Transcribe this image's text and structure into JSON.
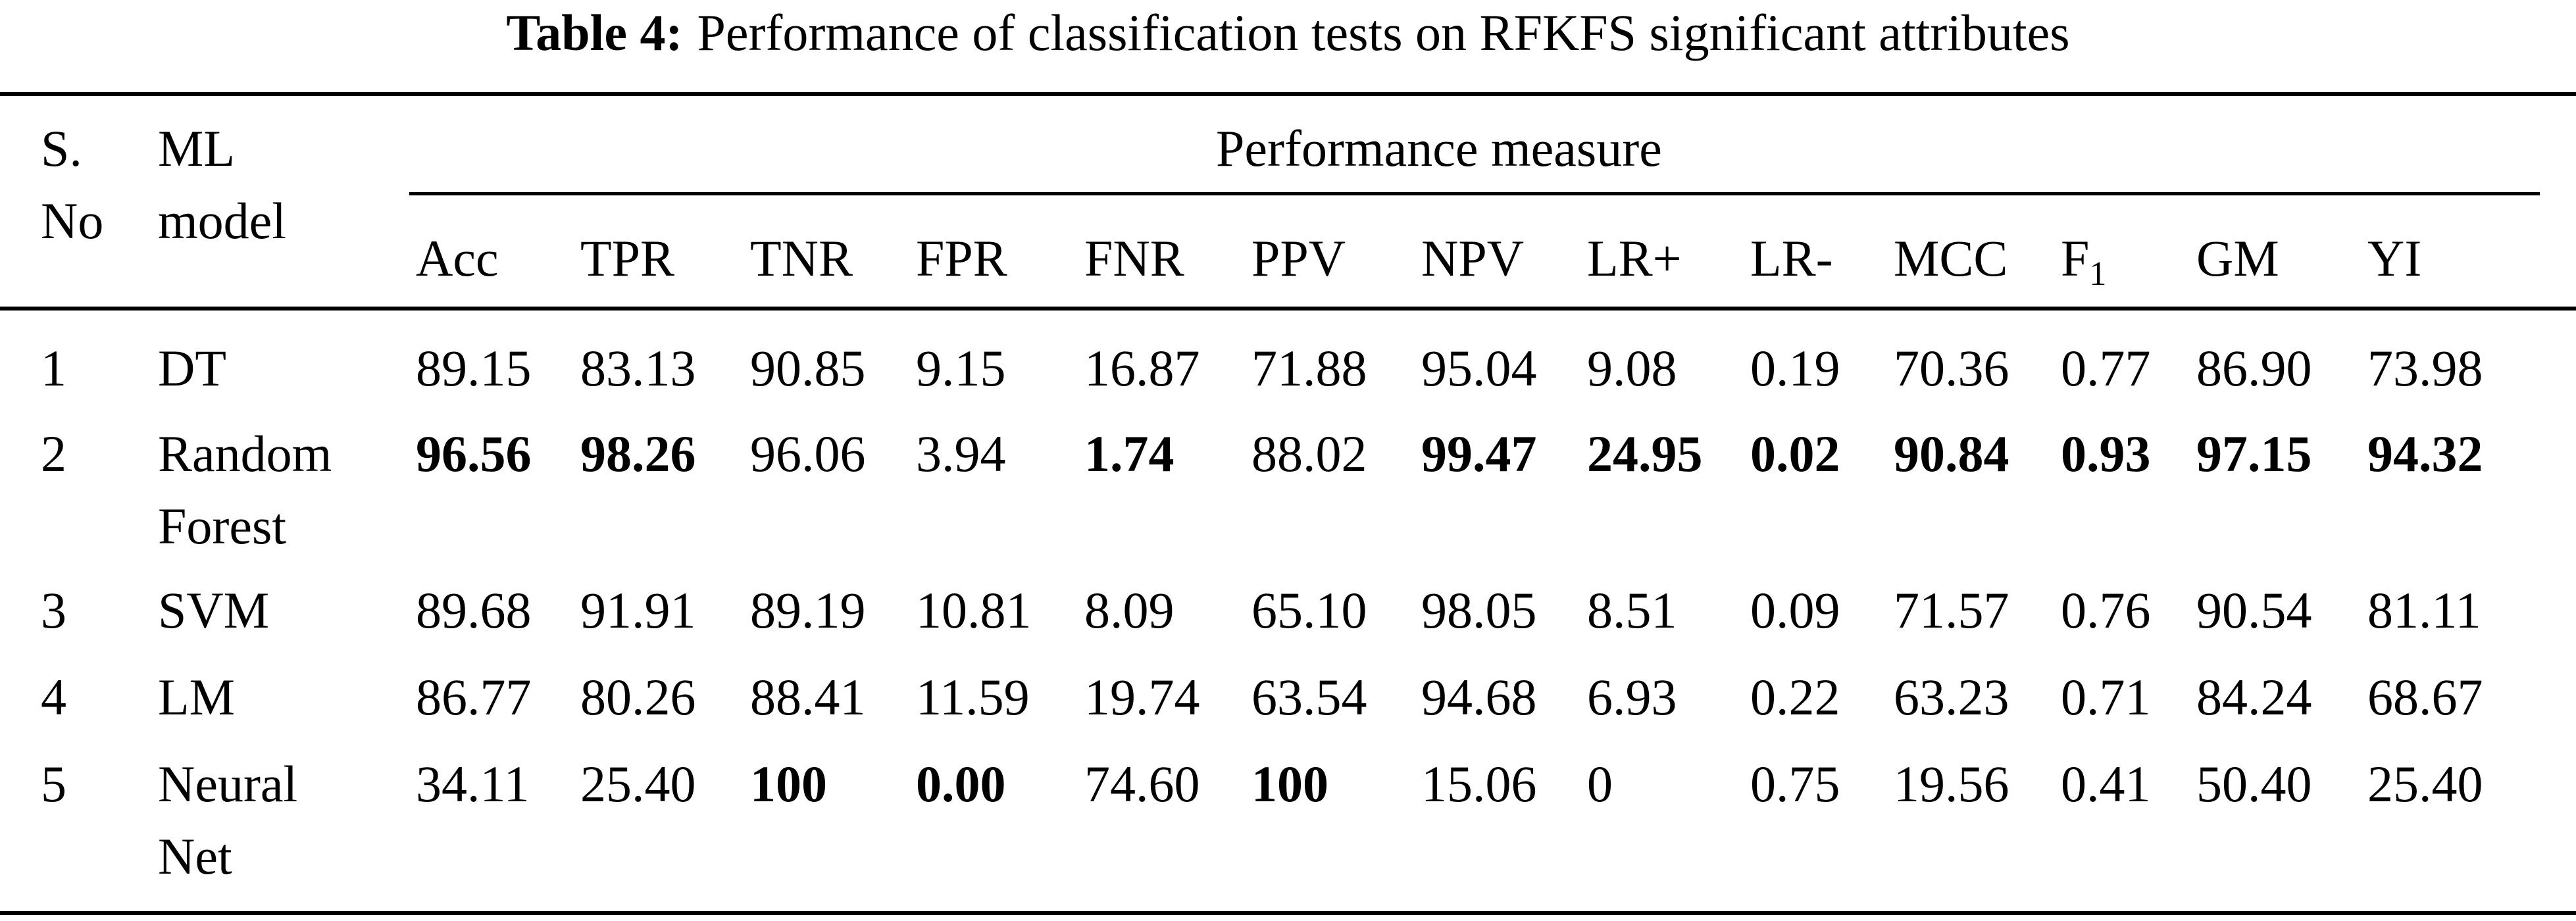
{
  "caption": {
    "label": "Table 4:",
    "text": "Performance of classification tests on RFKFS significant attributes"
  },
  "header": {
    "sno_line1": "S.",
    "sno_line2": "No",
    "model_line1": "ML",
    "model_line2": "model",
    "group": "Performance measure",
    "columns": [
      "Acc",
      "TPR",
      "TNR",
      "FPR",
      "FNR",
      "PPV",
      "NPV",
      "LR+",
      "LR-",
      "MCC",
      "F",
      "GM",
      "YI"
    ],
    "f1_subscript": "1"
  },
  "rows": [
    {
      "sno": "1",
      "model": [
        "DT"
      ],
      "values": [
        "89.15",
        "83.13",
        "90.85",
        "9.15",
        "16.87",
        "71.88",
        "95.04",
        "9.08",
        "0.19",
        "70.36",
        "0.77",
        "86.90",
        "73.98"
      ],
      "bold": []
    },
    {
      "sno": "2",
      "model": [
        "Random",
        "Forest"
      ],
      "values": [
        "96.56",
        "98.26",
        "96.06",
        "3.94",
        "1.74",
        "88.02",
        "99.47",
        "24.95",
        "0.02",
        "90.84",
        "0.93",
        "97.15",
        "94.32"
      ],
      "bold": [
        0,
        1,
        4,
        6,
        7,
        8,
        9,
        10,
        11,
        12
      ]
    },
    {
      "sno": "3",
      "model": [
        "SVM"
      ],
      "values": [
        "89.68",
        "91.91",
        "89.19",
        "10.81",
        "8.09",
        "65.10",
        "98.05",
        "8.51",
        "0.09",
        "71.57",
        "0.76",
        "90.54",
        "81.11"
      ],
      "bold": []
    },
    {
      "sno": "4",
      "model": [
        "LM"
      ],
      "values": [
        "86.77",
        "80.26",
        "88.41",
        "11.59",
        "19.74",
        "63.54",
        "94.68",
        "6.93",
        "0.22",
        "63.23",
        "0.71",
        "84.24",
        "68.67"
      ],
      "bold": []
    },
    {
      "sno": "5",
      "model": [
        "Neural",
        "Net"
      ],
      "values": [
        "34.11",
        "25.40",
        "100",
        "0.00",
        "74.60",
        "100",
        "15.06",
        "0",
        "0.75",
        "19.56",
        "0.41",
        "50.40",
        "25.40"
      ],
      "bold": [
        2,
        3,
        5
      ]
    }
  ]
}
